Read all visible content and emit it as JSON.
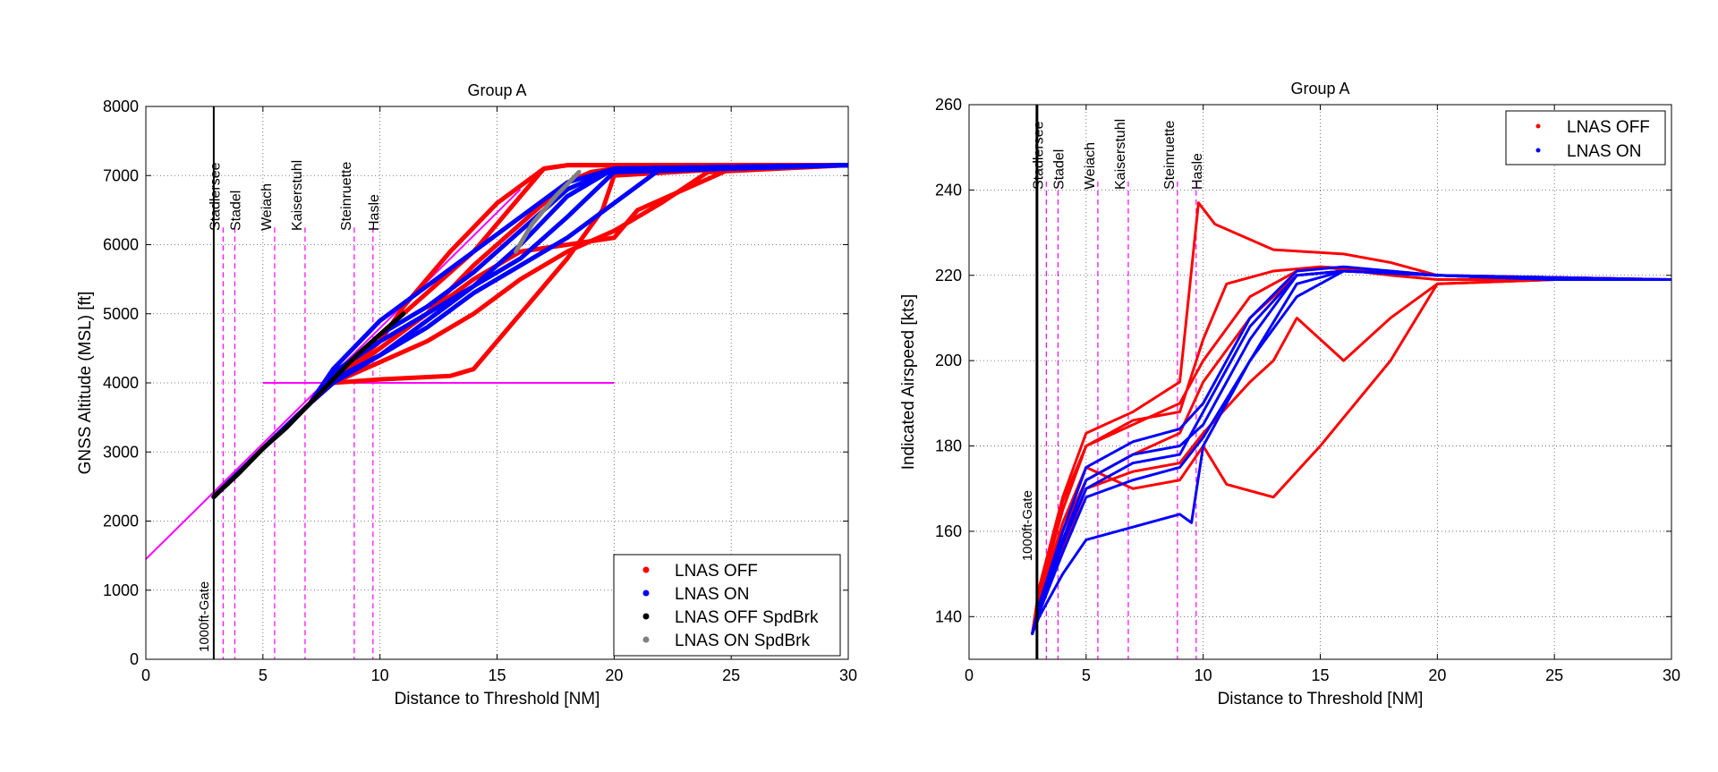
{
  "colors": {
    "off": "#ff0000",
    "on": "#0000ff",
    "off_spdbrk": "#000000",
    "on_spdbrk": "#808080",
    "waypoint": "#ff00ff",
    "profile": "#ff00ff",
    "gate": "#000000"
  },
  "chart_data": [
    {
      "type": "line",
      "title": "Group A",
      "xlabel": "Distance to Threshold [NM]",
      "ylabel": "GNSS Altitude (MSL) [ft]",
      "xlim": [
        0,
        30
      ],
      "ylim": [
        0,
        8000
      ],
      "xticks": [
        0,
        5,
        10,
        15,
        20,
        25,
        30
      ],
      "xtick_labels": [
        "0",
        "5",
        "10",
        "15",
        "20",
        "25",
        "30"
      ],
      "yticks": [
        0,
        1000,
        2000,
        3000,
        4000,
        5000,
        6000,
        7000,
        8000
      ],
      "ytick_labels": [
        "0",
        "1000",
        "2000",
        "3000",
        "4000",
        "5000",
        "6000",
        "7000",
        "8000"
      ],
      "grid": true,
      "gate": {
        "label": "1000ft-Gate",
        "x": 2.9
      },
      "waypoints": [
        {
          "label": "Stadlersee",
          "x": 3.3
        },
        {
          "label": "Stadel",
          "x": 3.8
        },
        {
          "label": "Weiach",
          "x": 5.5
        },
        {
          "label": "Kaiserstuhl",
          "x": 6.8
        },
        {
          "label": "Steinruette",
          "x": 8.9
        },
        {
          "label": "Hasle",
          "x": 9.7
        }
      ],
      "reference_lines": [
        {
          "name": "glide-path",
          "x": [
            0,
            16
          ],
          "y": [
            1450,
            6800
          ]
        },
        {
          "name": "level-4000",
          "x": [
            5,
            20
          ],
          "y": [
            4000,
            4000
          ]
        }
      ],
      "legend": {
        "placement": "bottom-right",
        "entries": [
          "LNAS OFF",
          "LNAS ON",
          "LNAS OFF SpdBrk",
          "LNAS ON SpdBrk"
        ]
      },
      "series": [
        {
          "name": "LNAS OFF",
          "color_key": "off",
          "lines": [
            {
              "x": [
                2.9,
                5,
                7,
                8,
                10,
                13,
                14,
                16,
                18,
                19.5,
                20,
                25,
                30
              ],
              "y": [
                2350,
                3050,
                3700,
                4000,
                4050,
                4100,
                4200,
                5000,
                5800,
                6500,
                7000,
                7100,
                7150
              ]
            },
            {
              "x": [
                2.9,
                5,
                7,
                8,
                10,
                12,
                14,
                16,
                18,
                19,
                20,
                30
              ],
              "y": [
                2350,
                3050,
                3700,
                4000,
                4500,
                5000,
                5700,
                6300,
                6900,
                7050,
                7100,
                7150
              ]
            },
            {
              "x": [
                2.9,
                5,
                7,
                8,
                10,
                12,
                14,
                16,
                17,
                18,
                20,
                30
              ],
              "y": [
                2350,
                3050,
                3700,
                4000,
                4700,
                5300,
                5900,
                6700,
                7100,
                7150,
                7150,
                7150
              ]
            },
            {
              "x": [
                2.9,
                5,
                7,
                8,
                10,
                12,
                14,
                16,
                18,
                20,
                21,
                25,
                30
              ],
              "y": [
                2350,
                3050,
                3700,
                4000,
                4500,
                5000,
                5500,
                5900,
                6000,
                6100,
                6500,
                7100,
                7150
              ]
            },
            {
              "x": [
                2.9,
                5,
                7,
                8,
                10,
                11,
                13,
                15,
                17,
                18,
                20,
                30
              ],
              "y": [
                2350,
                3050,
                3700,
                4000,
                4600,
                5100,
                5900,
                6600,
                7100,
                7150,
                7150,
                7150
              ]
            },
            {
              "x": [
                2.9,
                5,
                7,
                8,
                10,
                12,
                14,
                16,
                18,
                20,
                22,
                24,
                30
              ],
              "y": [
                2350,
                3050,
                3700,
                4000,
                4300,
                4600,
                5000,
                5500,
                5900,
                6200,
                6600,
                7050,
                7150
              ]
            }
          ]
        },
        {
          "name": "LNAS ON",
          "color_key": "on",
          "lines": [
            {
              "x": [
                2.9,
                5,
                7,
                8,
                10,
                12,
                14,
                16,
                18,
                20,
                30
              ],
              "y": [
                2350,
                3050,
                3700,
                4000,
                4400,
                4900,
                5400,
                6000,
                6700,
                7100,
                7150
              ]
            },
            {
              "x": [
                2.9,
                5,
                7,
                8,
                10,
                12,
                14,
                16,
                18,
                20,
                30
              ],
              "y": [
                2350,
                3050,
                3700,
                4100,
                4700,
                5100,
                5600,
                6200,
                6800,
                7100,
                7150
              ]
            },
            {
              "x": [
                2.9,
                5,
                7,
                8,
                10,
                12,
                14,
                16,
                18,
                20,
                30
              ],
              "y": [
                2350,
                3050,
                3700,
                4200,
                4900,
                5400,
                5900,
                6400,
                6900,
                7100,
                7150
              ]
            },
            {
              "x": [
                2.9,
                5,
                7,
                8,
                10,
                12,
                14,
                16,
                18,
                20,
                30
              ],
              "y": [
                2350,
                3050,
                3700,
                4150,
                4600,
                5000,
                5400,
                5800,
                6400,
                7050,
                7150
              ]
            },
            {
              "x": [
                2.9,
                5,
                7,
                8,
                10,
                12,
                14,
                16,
                18,
                20,
                22,
                30
              ],
              "y": [
                2350,
                3050,
                3700,
                4050,
                4400,
                4800,
                5300,
                5700,
                6100,
                6600,
                7100,
                7150
              ]
            }
          ]
        },
        {
          "name": "LNAS OFF SpdBrk",
          "color_key": "off_spdbrk",
          "lines": [
            {
              "x": [
                2.9,
                4,
                5,
                6,
                7,
                8,
                9,
                10,
                11
              ],
              "y": [
                2350,
                2700,
                3050,
                3350,
                3700,
                4050,
                4400,
                4700,
                5000
              ]
            }
          ]
        },
        {
          "name": "LNAS ON SpdBrk",
          "color_key": "on_spdbrk",
          "lines": [
            {
              "x": [
                15.8,
                16.5,
                17.5,
                18.5
              ],
              "y": [
                5900,
                6300,
                6700,
                7050
              ]
            }
          ]
        }
      ]
    },
    {
      "type": "scatter",
      "title": "Group A",
      "xlabel": "Distance to Threshold [NM]",
      "ylabel": "Indicated Airspeed [kts]",
      "xlim": [
        0,
        30
      ],
      "ylim": [
        130,
        260
      ],
      "xticks": [
        0,
        5,
        10,
        15,
        20,
        25,
        30
      ],
      "xtick_labels": [
        "0",
        "5",
        "10",
        "15",
        "20",
        "25",
        "30"
      ],
      "yticks": [
        140,
        160,
        180,
        200,
        220,
        240,
        260
      ],
      "ytick_labels": [
        "140",
        "160",
        "180",
        "200",
        "220",
        "240",
        "260"
      ],
      "grid": true,
      "gate": {
        "label": "1000ft-Gate",
        "x": 2.9
      },
      "waypoints": [
        {
          "label": "Stadlersee",
          "x": 3.3
        },
        {
          "label": "Stadel",
          "x": 3.8
        },
        {
          "label": "Weiach",
          "x": 5.5
        },
        {
          "label": "Kaiserstuhl",
          "x": 6.8
        },
        {
          "label": "Steinruette",
          "x": 8.9
        },
        {
          "label": "Hasle",
          "x": 9.7
        }
      ],
      "legend": {
        "placement": "top-right",
        "entries": [
          "LNAS OFF",
          "LNAS ON"
        ]
      },
      "series": [
        {
          "name": "LNAS OFF",
          "color_key": "off",
          "lines": [
            {
              "x": [
                2.7,
                3,
                4,
                5,
                7,
                9,
                10,
                11,
                13,
                15,
                18,
                20,
                25,
                30
              ],
              "y": [
                136,
                145,
                165,
                180,
                186,
                188,
                205,
                218,
                221,
                222,
                220,
                219,
                219,
                219
              ]
            },
            {
              "x": [
                2.7,
                3,
                4,
                5,
                7,
                9,
                10,
                12,
                14,
                16,
                20,
                25,
                30
              ],
              "y": [
                136,
                143,
                160,
                172,
                178,
                183,
                195,
                210,
                220,
                221,
                220,
                219,
                219
              ]
            },
            {
              "x": [
                2.7,
                3,
                4,
                5,
                7,
                9,
                10,
                11,
                13,
                15,
                18,
                20,
                25,
                30
              ],
              "y": [
                136,
                144,
                162,
                175,
                170,
                172,
                180,
                171,
                168,
                180,
                200,
                218,
                219,
                219
              ]
            },
            {
              "x": [
                2.7,
                3,
                4,
                5,
                7,
                9,
                9.8,
                10.5,
                13,
                16,
                18,
                20,
                30
              ],
              "y": [
                136,
                147,
                168,
                183,
                188,
                195,
                237,
                232,
                226,
                225,
                223,
                220,
                219
              ]
            },
            {
              "x": [
                2.7,
                3,
                4,
                5,
                7,
                9,
                10,
                12,
                13,
                14,
                15,
                16,
                18,
                20,
                25,
                30
              ],
              "y": [
                136,
                142,
                156,
                170,
                174,
                176,
                183,
                195,
                200,
                210,
                205,
                200,
                210,
                218,
                219,
                219
              ]
            },
            {
              "x": [
                2.7,
                3,
                4,
                5,
                7,
                9,
                10,
                12,
                14,
                15,
                18,
                20,
                30
              ],
              "y": [
                136,
                146,
                167,
                180,
                185,
                190,
                200,
                215,
                221,
                222,
                221,
                220,
                219
              ]
            }
          ]
        },
        {
          "name": "LNAS ON",
          "color_key": "on",
          "lines": [
            {
              "x": [
                2.7,
                3,
                4,
                5,
                7,
                9,
                10,
                12,
                14,
                16,
                20,
                25,
                30
              ],
              "y": [
                136,
                142,
                158,
                172,
                178,
                180,
                185,
                205,
                220,
                221,
                220,
                219,
                219
              ]
            },
            {
              "x": [
                2.7,
                3,
                4,
                5,
                7,
                9,
                10,
                12,
                14,
                16,
                20,
                25,
                30
              ],
              "y": [
                136,
                141,
                155,
                168,
                172,
                175,
                182,
                200,
                218,
                221,
                220,
                219,
                219
              ]
            },
            {
              "x": [
                2.7,
                3,
                4,
                5,
                7,
                9,
                10,
                12,
                14,
                16,
                20,
                25,
                30
              ],
              "y": [
                136,
                143,
                160,
                175,
                181,
                184,
                190,
                210,
                221,
                222,
                220,
                219,
                219
              ]
            },
            {
              "x": [
                2.7,
                3,
                4,
                5,
                7,
                9,
                9.5,
                10,
                12,
                14,
                16,
                20,
                30
              ],
              "y": [
                136,
                140,
                150,
                158,
                161,
                164,
                162,
                180,
                200,
                215,
                221,
                220,
                219
              ]
            },
            {
              "x": [
                2.7,
                3,
                4,
                5,
                7,
                9,
                10,
                12,
                14,
                16,
                20,
                25,
                30
              ],
              "y": [
                136,
                142,
                157,
                170,
                176,
                178,
                188,
                208,
                220,
                221,
                220,
                219,
                219
              ]
            }
          ]
        }
      ]
    }
  ]
}
